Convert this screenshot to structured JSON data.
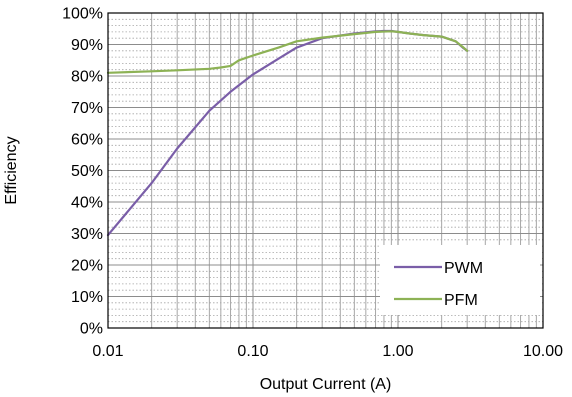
{
  "chart_data": {
    "type": "line",
    "title": "",
    "xlabel": "Output Current (A)",
    "ylabel": "Efficiency",
    "x_scale": "log",
    "xlim": [
      0.01,
      10
    ],
    "ylim": [
      0,
      100
    ],
    "x_ticks": [
      0.01,
      0.1,
      1,
      10
    ],
    "x_tick_labels": [
      "0.01",
      "0.10",
      "1.00",
      "10.00"
    ],
    "y_ticks": [
      0,
      10,
      20,
      30,
      40,
      50,
      60,
      70,
      80,
      90,
      100
    ],
    "y_tick_labels": [
      "0%",
      "10%",
      "20%",
      "30%",
      "40%",
      "50%",
      "60%",
      "70%",
      "80%",
      "90%",
      "100%"
    ],
    "grid": true,
    "legend_position": "bottom-right",
    "series": [
      {
        "name": "PWM",
        "color": "#7a5ea8",
        "x": [
          0.01,
          0.02,
          0.03,
          0.05,
          0.07,
          0.1,
          0.15,
          0.2,
          0.3,
          0.5,
          0.7,
          0.8,
          0.9,
          1.0,
          1.2,
          1.5,
          2.0,
          2.5,
          2.8,
          3.0
        ],
        "y": [
          29.5,
          46,
          57,
          69,
          75,
          80.5,
          85.5,
          89,
          92,
          93.5,
          94.2,
          94.3,
          94.3,
          94,
          93.5,
          93,
          92.5,
          91,
          89,
          88
        ]
      },
      {
        "name": "PFM",
        "color": "#8db255",
        "x": [
          0.01,
          0.02,
          0.03,
          0.05,
          0.06,
          0.07,
          0.08,
          0.1,
          0.15,
          0.2,
          0.3,
          0.5,
          0.7,
          0.9,
          1.0,
          1.2,
          1.5,
          2.0,
          2.5,
          2.8,
          3.0
        ],
        "y": [
          81,
          81.5,
          81.8,
          82.3,
          82.7,
          83.2,
          85,
          86.5,
          89,
          91,
          92.2,
          93.3,
          94,
          94.2,
          94,
          93.5,
          93,
          92.5,
          91,
          89.2,
          88
        ]
      }
    ]
  }
}
